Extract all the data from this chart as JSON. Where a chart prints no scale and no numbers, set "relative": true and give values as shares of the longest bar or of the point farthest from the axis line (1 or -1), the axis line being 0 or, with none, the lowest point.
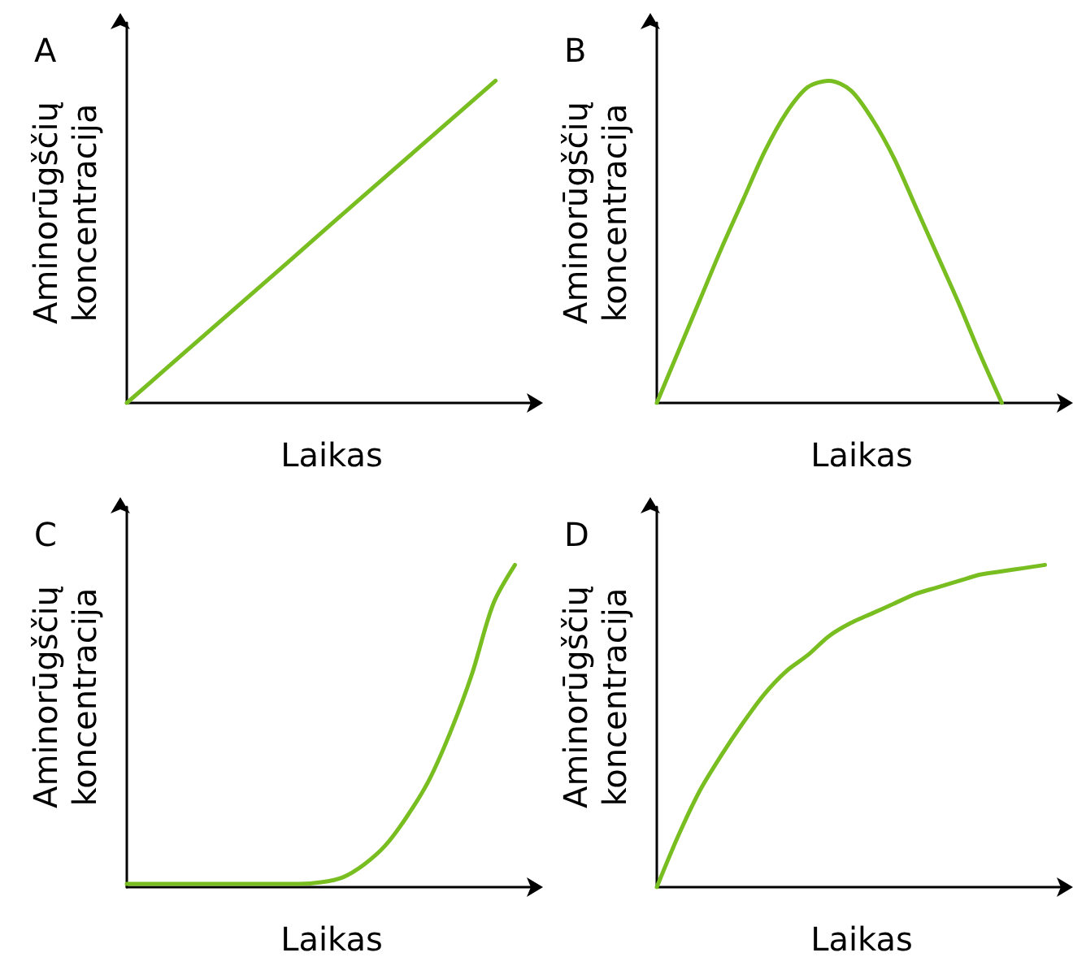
{
  "chart_data": [
    {
      "type": "line",
      "title": "A",
      "xlabel": "Laikas",
      "ylabel": "Aminorūgščių\nkoncentracija",
      "relative": true,
      "marker": "none",
      "categories": [
        null,
        null,
        null,
        null,
        null,
        null,
        null,
        null,
        null,
        null,
        null
      ],
      "series": [
        {
          "color": "#78be20",
          "values": [
            0,
            0.111,
            0.222,
            0.333,
            0.444,
            0.556,
            0.667,
            0.778,
            0.889,
            1,
            null
          ]
        }
      ]
    },
    {
      "type": "line",
      "title": "B",
      "xlabel": "Laikas",
      "ylabel": "Aminorūgščių\nkoncentracija",
      "relative": true,
      "marker": "none",
      "categories": [
        null,
        null,
        null,
        null,
        null,
        null,
        null,
        null,
        null,
        null,
        null,
        null,
        null,
        null,
        null,
        null,
        null,
        null,
        null,
        null
      ],
      "series": [
        {
          "color": "#78be20",
          "values": [
            0,
            0.16,
            0.32,
            0.48,
            0.63,
            0.78,
            0.9,
            0.98,
            1,
            0.97,
            0.88,
            0.76,
            0.61,
            0.46,
            0.31,
            0.15,
            0,
            null,
            null,
            null
          ]
        }
      ]
    },
    {
      "type": "line",
      "title": "C",
      "xlabel": "Laikas",
      "ylabel": "Aminorūgščių\nkoncentracija",
      "relative": true,
      "marker": "none",
      "categories": [
        null,
        null,
        null,
        null,
        null,
        null,
        null,
        null,
        null,
        null,
        null,
        null,
        null,
        null,
        null,
        null,
        null,
        null,
        null,
        null
      ],
      "series": [
        {
          "color": "#78be20",
          "values": [
            0.01,
            0.01,
            0.01,
            0.01,
            0.01,
            0.01,
            0.01,
            0.01,
            0.01,
            0.015,
            0.03,
            0.07,
            0.13,
            0.22,
            0.33,
            0.48,
            0.66,
            0.88,
            1,
            null
          ]
        }
      ]
    },
    {
      "type": "line",
      "title": "D",
      "xlabel": "Laikas",
      "ylabel": "Aminorūgščių\nkoncentracija",
      "relative": true,
      "marker": "none",
      "categories": [
        null,
        null,
        null,
        null,
        null,
        null,
        null,
        null,
        null,
        null,
        null,
        null,
        null,
        null,
        null,
        null,
        null,
        null,
        null,
        null
      ],
      "series": [
        {
          "color": "#78be20",
          "values": [
            0,
            0.16,
            0.3,
            0.41,
            0.51,
            0.6,
            0.67,
            0.72,
            0.78,
            0.82,
            0.85,
            0.88,
            0.91,
            0.93,
            0.95,
            0.97,
            0.98,
            0.99,
            1,
            null
          ]
        }
      ]
    }
  ]
}
